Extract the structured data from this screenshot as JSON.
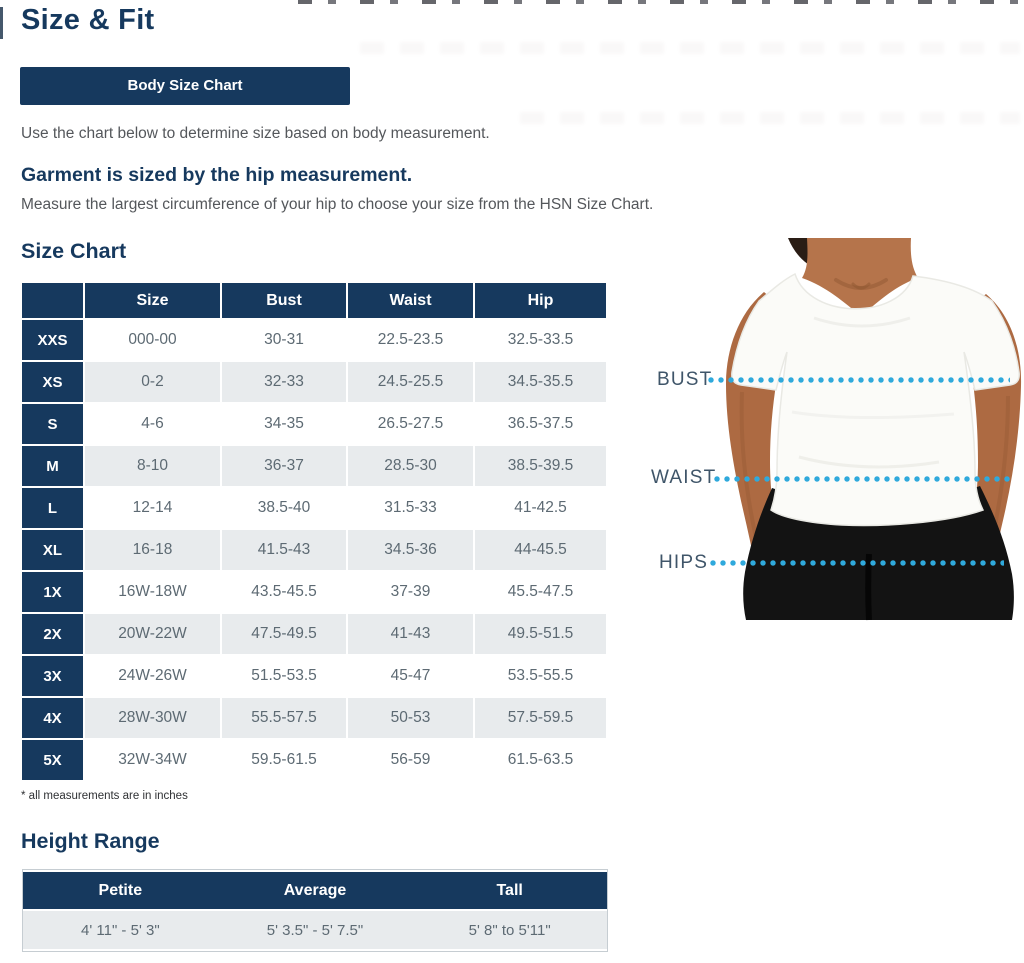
{
  "page": {
    "title": "Size & Fit",
    "tab_label": "Body Size Chart",
    "intro": "Use the chart below to determine size based on body measurement.",
    "garment_heading": "Garment is sized by the hip measurement.",
    "garment_sub": "Measure the largest circumference of your hip to choose your size from the HSN Size Chart.",
    "size_chart_heading": "Size Chart",
    "footnote": "* all measurements are in inches",
    "height_heading": "Height Range"
  },
  "size_table": {
    "columns": [
      "Size",
      "Bust",
      "Waist",
      "Hip"
    ],
    "rows": [
      {
        "label": "XXS",
        "size": "000-00",
        "bust": "30-31",
        "waist": "22.5-23.5",
        "hip": "32.5-33.5"
      },
      {
        "label": "XS",
        "size": "0-2",
        "bust": "32-33",
        "waist": "24.5-25.5",
        "hip": "34.5-35.5"
      },
      {
        "label": "S",
        "size": "4-6",
        "bust": "34-35",
        "waist": "26.5-27.5",
        "hip": "36.5-37.5"
      },
      {
        "label": "M",
        "size": "8-10",
        "bust": "36-37",
        "waist": "28.5-30",
        "hip": "38.5-39.5"
      },
      {
        "label": "L",
        "size": "12-14",
        "bust": "38.5-40",
        "waist": "31.5-33",
        "hip": "41-42.5"
      },
      {
        "label": "XL",
        "size": "16-18",
        "bust": "41.5-43",
        "waist": "34.5-36",
        "hip": "44-45.5"
      },
      {
        "label": "1X",
        "size": "16W-18W",
        "bust": "43.5-45.5",
        "waist": "37-39",
        "hip": "45.5-47.5"
      },
      {
        "label": "2X",
        "size": "20W-22W",
        "bust": "47.5-49.5",
        "waist": "41-43",
        "hip": "49.5-51.5"
      },
      {
        "label": "3X",
        "size": "24W-26W",
        "bust": "51.5-53.5",
        "waist": "45-47",
        "hip": "53.5-55.5"
      },
      {
        "label": "4X",
        "size": "28W-30W",
        "bust": "55.5-57.5",
        "waist": "50-53",
        "hip": "57.5-59.5"
      },
      {
        "label": "5X",
        "size": "32W-34W",
        "bust": "59.5-61.5",
        "waist": "56-59",
        "hip": "61.5-63.5"
      }
    ]
  },
  "height_table": {
    "columns": [
      "Petite",
      "Average",
      "Tall"
    ],
    "values": [
      "4' 11\" - 5' 3\"",
      "5' 3.5\" - 5' 7.5\"",
      "5' 8\" to 5'11\""
    ]
  },
  "figure": {
    "labels": [
      "BUST",
      "WAIST",
      "HIPS"
    ]
  },
  "colors": {
    "navy": "#16395E",
    "dot_cyan": "#2FA9DC",
    "row_stripe": "#E8EBED",
    "body_text": "#54575B",
    "table_text": "#5D6A73",
    "skin": "#B5744B",
    "pants": "#131313"
  }
}
